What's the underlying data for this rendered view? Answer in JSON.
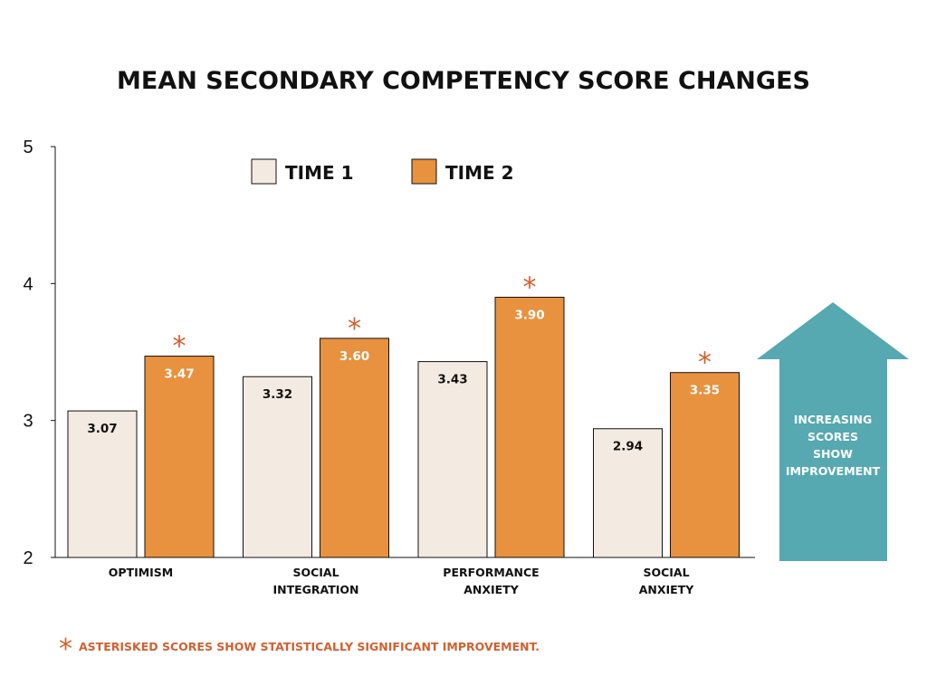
{
  "chart_data": {
    "type": "bar",
    "title": "MEAN SECONDARY COMPETENCY SCORE CHANGES",
    "categories": [
      [
        "OPTIMISM"
      ],
      [
        "SOCIAL",
        "INTEGRATION"
      ],
      [
        "PERFORMANCE",
        "ANXIETY"
      ],
      [
        "SOCIAL",
        "ANXIETY"
      ]
    ],
    "series": [
      {
        "name": "TIME 1",
        "values": [
          3.07,
          3.32,
          3.43,
          2.94
        ],
        "labels": [
          "3.07",
          "3.32",
          "3.43",
          "2.94"
        ],
        "color": "#f3eae1"
      },
      {
        "name": "TIME 2",
        "values": [
          3.47,
          3.6,
          3.9,
          3.35
        ],
        "labels": [
          "3.47",
          "3.60",
          "3.90",
          "3.35"
        ],
        "color": "#e8913f"
      }
    ],
    "significant": [
      true,
      true,
      true,
      true
    ],
    "asterisk": "*",
    "ylim": [
      2,
      5
    ],
    "yticks": [
      "2",
      "3",
      "4",
      "5"
    ],
    "xlabel": "",
    "ylabel": "",
    "legend_position": "top",
    "annotation": {
      "arrow_text": [
        "INCREASING",
        "SCORES",
        "SHOW",
        "IMPROVEMENT"
      ],
      "arrow_color": "#56a8b1"
    },
    "footnote": "ASTERISKED SCORES SHOW STATISTICALLY SIGNIFICANT IMPROVEMENT.",
    "accent_color": "#d35f2f"
  }
}
